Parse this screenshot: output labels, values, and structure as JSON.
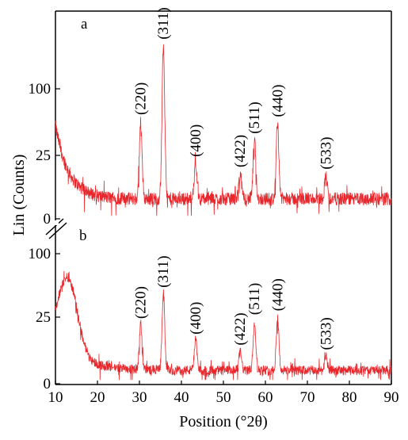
{
  "chart_data": {
    "type": "line",
    "xlabel": "Position (°2θ)",
    "ylabel": "Lin (Counts)",
    "xlim": [
      10,
      90
    ],
    "x_ticks": [
      "10",
      "20",
      "30",
      "40",
      "50",
      "60",
      "70",
      "80",
      "90"
    ],
    "series_color": "#e8262b",
    "axis_color": "#000000",
    "grid": false,
    "panels": [
      {
        "label": "a",
        "y_ticks": [
          "0",
          "25",
          "100"
        ],
        "baseline": 16,
        "peaks": [
          {
            "x": 30.3,
            "y": 90,
            "label": "(220)"
          },
          {
            "x": 35.7,
            "y": 162,
            "label": "(311)"
          },
          {
            "x": 43.4,
            "y": 50,
            "label": "(400)"
          },
          {
            "x": 54.0,
            "y": 40,
            "label": "(422)"
          },
          {
            "x": 57.4,
            "y": 72,
            "label": "(511)"
          },
          {
            "x": 62.9,
            "y": 88,
            "label": "(440)"
          },
          {
            "x": 74.4,
            "y": 38,
            "label": "(533)"
          }
        ]
      },
      {
        "label": "b",
        "y_ticks": [
          "0",
          "25",
          "100"
        ],
        "baseline": 12,
        "peaks": [
          {
            "x": 30.3,
            "y": 70,
            "label": "(220)"
          },
          {
            "x": 35.7,
            "y": 110,
            "label": "(311)"
          },
          {
            "x": 43.4,
            "y": 50,
            "label": "(400)"
          },
          {
            "x": 54.0,
            "y": 36,
            "label": "(422)"
          },
          {
            "x": 57.4,
            "y": 75,
            "label": "(511)"
          },
          {
            "x": 62.9,
            "y": 80,
            "label": "(440)"
          },
          {
            "x": 74.4,
            "y": 30,
            "label": "(533)"
          }
        ]
      }
    ]
  }
}
